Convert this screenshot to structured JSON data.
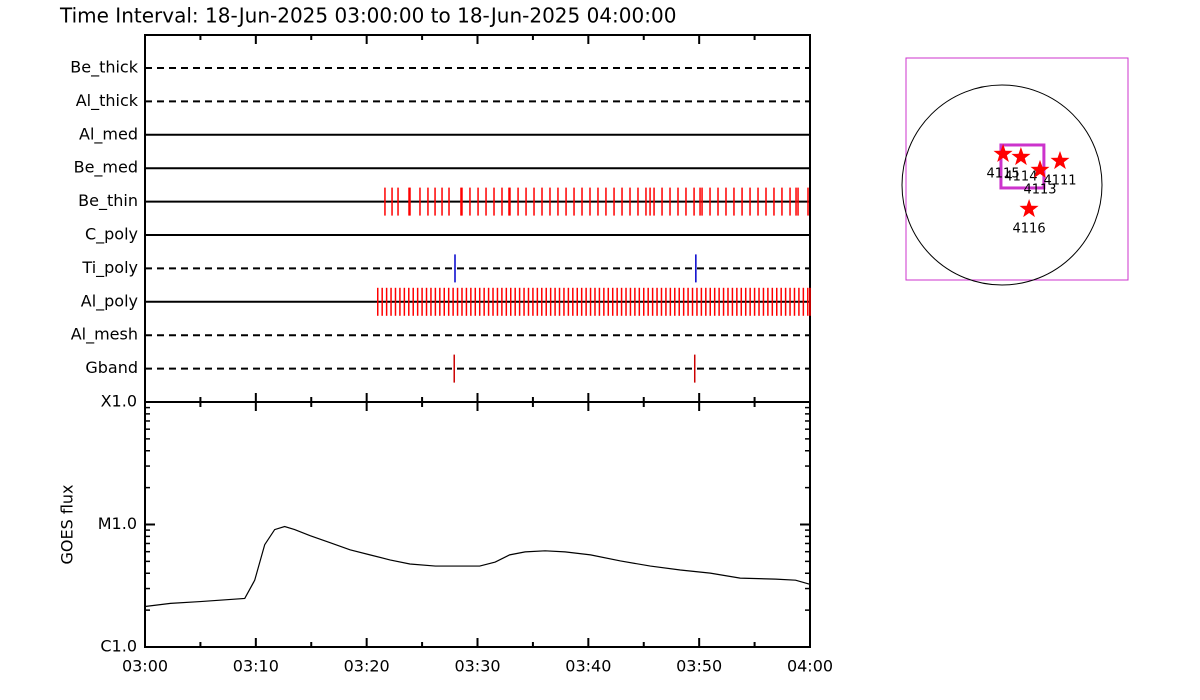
{
  "title": "Time Interval: 18-Jun-2025 03:00:00 to 18-Jun-2025 04:00:00",
  "chart_data": [
    {
      "type": "timeline",
      "rows": [
        {
          "name": "Be_thick",
          "line": "dashed",
          "color": "#ff0000",
          "events": []
        },
        {
          "name": "Al_thick",
          "line": "dashed",
          "color": "#ff0000",
          "events": []
        },
        {
          "name": "Al_med",
          "line": "solid",
          "color": "#ff0000",
          "events": []
        },
        {
          "name": "Be_med",
          "line": "solid",
          "color": "#ff0000",
          "events": []
        },
        {
          "name": "Be_thin",
          "line": "solid",
          "color": "#ff0000",
          "events": [
            21.65,
            22.29,
            22.83,
            23.82,
            23.91,
            24.81,
            25.53,
            26.17,
            26.8,
            27.43,
            28.51,
            28.6,
            29.32,
            30.05,
            30.77,
            31.49,
            32.21,
            32.84,
            32.93,
            33.66,
            34.38,
            35.1,
            35.82,
            36.54,
            37.26,
            37.99,
            38.71,
            39.43,
            40.15,
            40.87,
            41.59,
            42.32,
            43.04,
            43.76,
            44.48,
            45.2,
            45.57,
            45.93,
            46.65,
            47.37,
            48.09,
            48.81,
            49.54,
            50.08,
            50.26,
            50.98,
            51.7,
            52.42,
            53.14,
            53.87,
            54.59,
            55.31,
            56.03,
            56.75,
            57.47,
            58.2,
            58.74,
            58.92,
            59.82
          ]
        },
        {
          "name": "C_poly",
          "line": "solid",
          "color": "#ff0000",
          "events": []
        },
        {
          "name": "Ti_poly",
          "line": "dashed",
          "color": "#0000cc",
          "events": [
            27.97,
            49.7
          ]
        },
        {
          "name": "Al_poly",
          "line": "solid",
          "color": "#ff0000",
          "events": [
            21.0,
            21.4,
            21.8,
            22.2,
            22.6,
            23.0,
            23.4,
            23.8,
            24.2,
            24.6,
            25.0,
            25.4,
            25.8,
            26.2,
            26.6,
            27.0,
            27.4,
            27.8,
            28.2,
            28.6,
            29.0,
            29.4,
            29.8,
            30.2,
            30.6,
            31.0,
            31.4,
            31.8,
            32.2,
            32.6,
            33.0,
            33.4,
            33.8,
            34.2,
            34.6,
            35.0,
            35.4,
            35.8,
            36.2,
            36.6,
            37.0,
            37.4,
            37.8,
            38.2,
            38.6,
            39.0,
            39.4,
            39.8,
            40.2,
            40.6,
            41.0,
            41.4,
            41.8,
            42.2,
            42.6,
            43.0,
            43.4,
            43.8,
            44.2,
            44.6,
            45.0,
            45.4,
            45.8,
            46.2,
            46.6,
            47.0,
            47.4,
            47.8,
            48.2,
            48.6,
            49.0,
            49.4,
            49.8,
            50.2,
            50.6,
            51.0,
            51.4,
            51.8,
            52.2,
            52.6,
            53.0,
            53.4,
            53.8,
            54.2,
            54.6,
            55.0,
            55.4,
            55.8,
            56.2,
            56.6,
            57.0,
            57.4,
            57.8,
            58.2,
            58.6,
            59.0,
            59.4,
            59.8,
            60.0
          ]
        },
        {
          "name": "Al_mesh",
          "line": "dashed",
          "color": "#ff0000",
          "events": []
        },
        {
          "name": "Gband",
          "line": "dashed",
          "color": "#cc0000",
          "events": [
            27.9,
            49.6
          ]
        }
      ]
    },
    {
      "type": "line",
      "ylabel": "GOES flux",
      "log": true,
      "color": "#000000",
      "xlim": [
        0,
        60
      ],
      "xticks": [
        {
          "value": 0,
          "label": "03:00"
        },
        {
          "value": 10,
          "label": "03:10"
        },
        {
          "value": 20,
          "label": "03:20"
        },
        {
          "value": 30,
          "label": "03:30"
        },
        {
          "value": 40,
          "label": "03:40"
        },
        {
          "value": 50,
          "label": "03:50"
        },
        {
          "value": 60,
          "label": "04:00"
        }
      ],
      "ylim": [
        1e-06,
        0.0001
      ],
      "yticks": [
        {
          "value": 1e-06,
          "label": "C1.0"
        },
        {
          "value": 1e-05,
          "label": "M1.0"
        },
        {
          "value": 0.0001,
          "label": "X1.0"
        }
      ],
      "x": [
        0,
        2.3,
        5.0,
        9.0,
        9.9,
        10.8,
        11.7,
        12.6,
        13.5,
        14.9,
        16.7,
        18.5,
        20.3,
        22.1,
        23.9,
        26.2,
        30.2,
        31.6,
        32.9,
        34.3,
        36.1,
        37.9,
        40.2,
        42.9,
        45.6,
        48.3,
        51.0,
        53.7,
        56.9,
        58.7,
        60
      ],
      "values": [
        2.14e-06,
        2.27e-06,
        2.35e-06,
        2.49e-06,
        3.51e-06,
        6.84e-06,
        9.09e-06,
        9.62e-06,
        9.09e-06,
        8.11e-06,
        7.1e-06,
        6.21e-06,
        5.65e-06,
        5.14e-06,
        4.76e-06,
        4.58e-06,
        4.58e-06,
        4.94e-06,
        5.65e-06,
        5.98e-06,
        6.1e-06,
        5.98e-06,
        5.65e-06,
        5.04e-06,
        4.58e-06,
        4.25e-06,
        4.01e-06,
        3.65e-06,
        3.58e-06,
        3.51e-06,
        3.25e-06
      ]
    },
    {
      "type": "map",
      "xlim": [
        -912,
        1197
      ],
      "ylim": [
        -902,
        1206
      ],
      "radius": 950,
      "box_color": "#cc33cc",
      "marker_color": "#ff0000",
      "fov": {
        "x": [
          -10,
          398
        ],
        "y": [
          -28,
          380
        ]
      },
      "regions": [
        {
          "name": "4115",
          "x": 10,
          "y": 295
        },
        {
          "name": "4114",
          "x": 180,
          "y": 266
        },
        {
          "name": "4113",
          "x": 361,
          "y": 143
        },
        {
          "name": "4111",
          "x": 551,
          "y": 228
        },
        {
          "name": "4116",
          "x": 257,
          "y": -228
        }
      ]
    }
  ]
}
